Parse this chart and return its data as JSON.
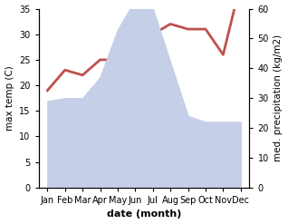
{
  "months": [
    "Jan",
    "Feb",
    "Mar",
    "Apr",
    "May",
    "Jun",
    "Jul",
    "Aug",
    "Sep",
    "Oct",
    "Nov",
    "Dec"
  ],
  "precipitation": [
    29,
    30,
    30,
    37,
    53,
    63,
    60,
    42,
    24,
    22,
    22,
    22
  ],
  "temperature": [
    19,
    23,
    22,
    25,
    25,
    30,
    30,
    32,
    31,
    31,
    26,
    40
  ],
  "temp_color": "#c0504d",
  "precip_fill_color": "#c5cfe8",
  "precip_edge_color": "#8fa8d8",
  "left_ylim": [
    0,
    35
  ],
  "right_ylim": [
    0,
    60
  ],
  "left_yticks": [
    0,
    5,
    10,
    15,
    20,
    25,
    30,
    35
  ],
  "right_yticks": [
    0,
    10,
    20,
    30,
    40,
    50,
    60
  ],
  "ylabel_left": "max temp (C)",
  "ylabel_right": "med. precipitation (kg/m2)",
  "xlabel": "date (month)",
  "temp_linewidth": 2.0,
  "xlabel_fontsize": 8,
  "ylabel_fontsize": 7.5,
  "tick_fontsize": 7
}
